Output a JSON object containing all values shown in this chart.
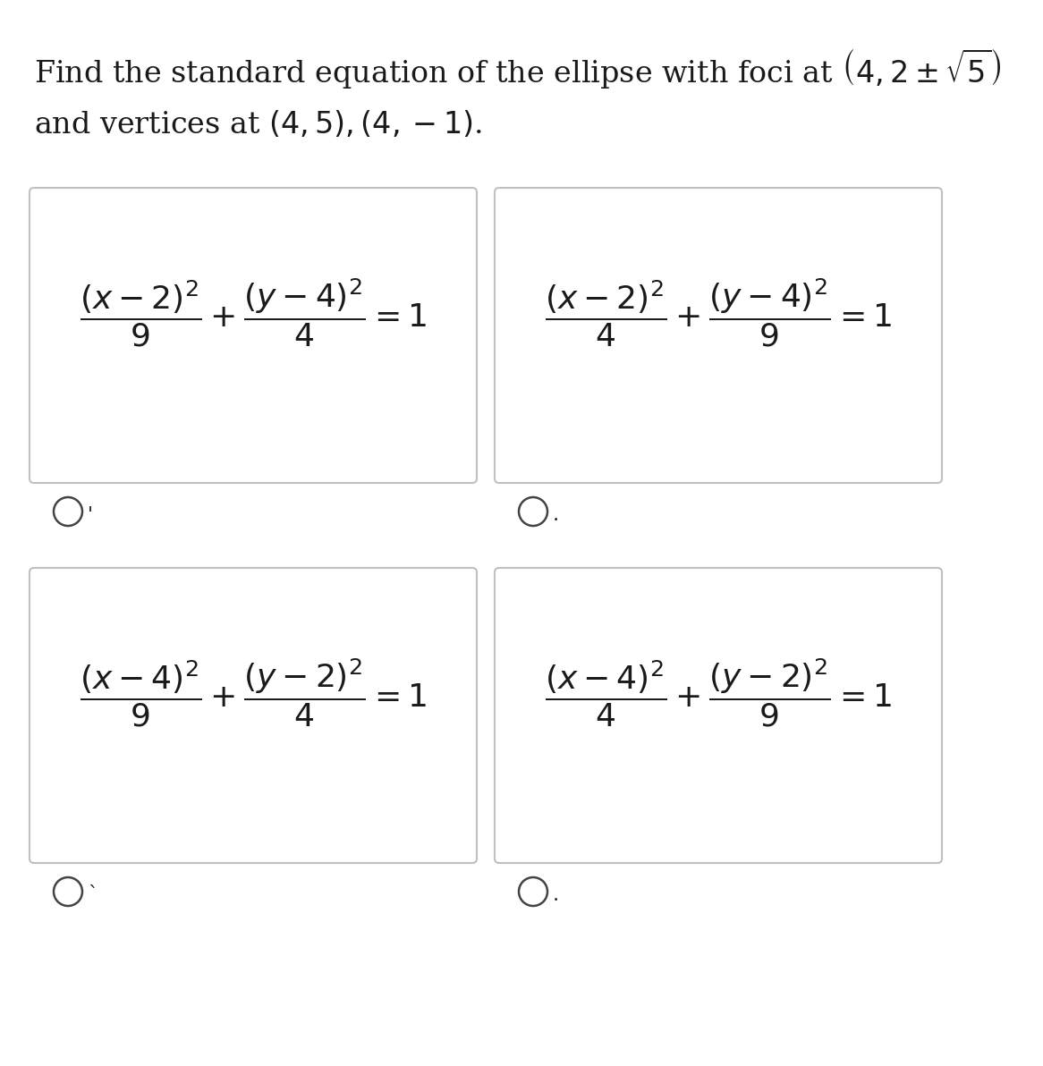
{
  "bg_color": "#f0f0f0",
  "page_color": "#ffffff",
  "box_facecolor": "#ffffff",
  "box_edgecolor": "#c0c0c0",
  "text_color": "#1a1a1a",
  "title_line1": "Find the standard equation of the ellipse with foci at $\\left(4,2\\pm\\sqrt{5}\\right)$",
  "title_line2": "and vertices at $\\left(4,5\\right),\\left(4,-1\\right)$.",
  "formulas": [
    "$\\dfrac{(x-2)^{2}}{9}+\\dfrac{(y-4)^{2}}{4}=1$",
    "$\\dfrac{(x-2)^{2}}{4}+\\dfrac{(y-4)^{2}}{9}=1$",
    "$\\dfrac{(x-4)^{2}}{9}+\\dfrac{(y-2)^{2}}{4}=1$",
    "$\\dfrac{(x-4)^{2}}{4}+\\dfrac{(y-2)^{2}}{9}=1$"
  ],
  "radio_labels": [
    ".",
    ",",
    "`",
    "."
  ],
  "title_fontsize": 24,
  "formula_fontsize": 26,
  "radio_fontsize": 18,
  "figsize": [
    11.66,
    11.92
  ],
  "dpi": 100
}
